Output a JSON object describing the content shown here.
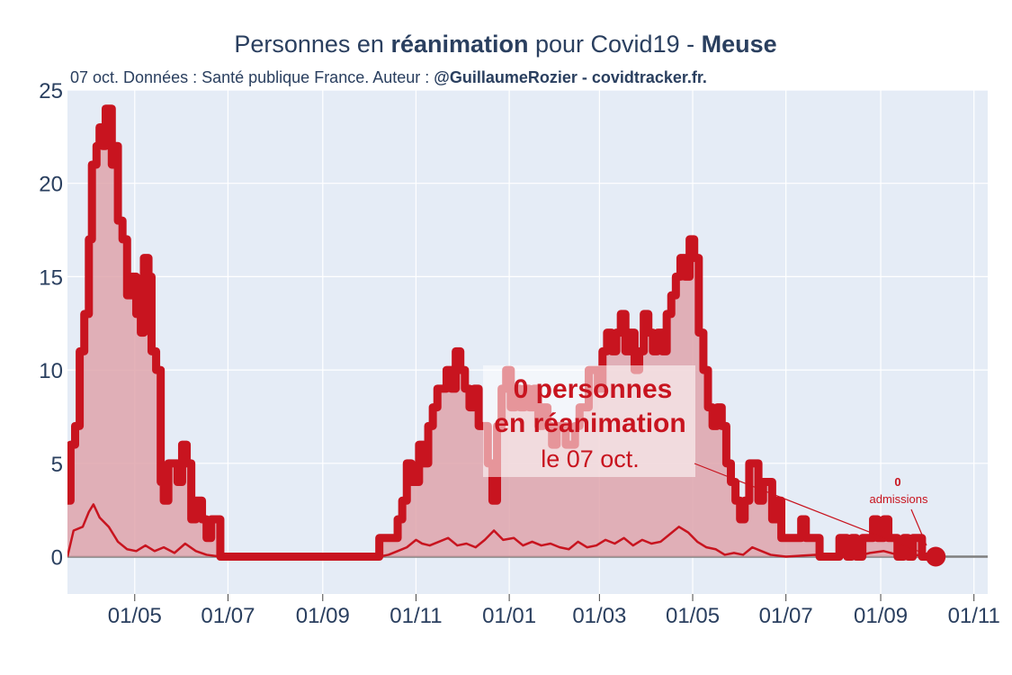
{
  "chart_data": {
    "type": "area",
    "title_parts": [
      {
        "text": "Personnes en ",
        "bold": false
      },
      {
        "text": "réanimation",
        "bold": true
      },
      {
        "text": " pour Covid19 - ",
        "bold": false
      },
      {
        "text": "Meuse",
        "bold": true
      }
    ],
    "subtitle_parts": [
      {
        "text": "07 oct. Données : Santé publique France. Auteur : ",
        "bold": false
      },
      {
        "text": "@GuillaumeRozier - covidtracker.fr.",
        "bold": true
      }
    ],
    "x_range": [
      "2020-03-18",
      "2021-11-10"
    ],
    "ylim": [
      -2,
      25
    ],
    "yticks": [
      0,
      5,
      10,
      15,
      20,
      25
    ],
    "xticks": [
      {
        "date": "2020-05-01",
        "label": "01/05"
      },
      {
        "date": "2020-07-01",
        "label": "01/07"
      },
      {
        "date": "2020-09-01",
        "label": "01/09"
      },
      {
        "date": "2020-11-01",
        "label": "01/11"
      },
      {
        "date": "2021-01-01",
        "label": "01/01"
      },
      {
        "date": "2021-03-01",
        "label": "01/03"
      },
      {
        "date": "2021-05-01",
        "label": "01/05"
      },
      {
        "date": "2021-07-01",
        "label": "01/07"
      },
      {
        "date": "2021-09-01",
        "label": "01/09"
      },
      {
        "date": "2021-11-01",
        "label": "01/11"
      }
    ],
    "grid": true,
    "series": [
      {
        "role": "icu_patients",
        "color": "#c8141f",
        "fill": "#dfa5ab",
        "points": [
          [
            "2020-03-18",
            3
          ],
          [
            "2020-03-20",
            6
          ],
          [
            "2020-03-23",
            7
          ],
          [
            "2020-03-26",
            11
          ],
          [
            "2020-03-29",
            13
          ],
          [
            "2020-04-01",
            17
          ],
          [
            "2020-04-03",
            21
          ],
          [
            "2020-04-06",
            22
          ],
          [
            "2020-04-08",
            23
          ],
          [
            "2020-04-10",
            22
          ],
          [
            "2020-04-12",
            24
          ],
          [
            "2020-04-14",
            24
          ],
          [
            "2020-04-16",
            21
          ],
          [
            "2020-04-18",
            22
          ],
          [
            "2020-04-20",
            18
          ],
          [
            "2020-04-23",
            17
          ],
          [
            "2020-04-26",
            14
          ],
          [
            "2020-04-29",
            15
          ],
          [
            "2020-05-02",
            13
          ],
          [
            "2020-05-05",
            12
          ],
          [
            "2020-05-07",
            16
          ],
          [
            "2020-05-10",
            15
          ],
          [
            "2020-05-12",
            11
          ],
          [
            "2020-05-15",
            10
          ],
          [
            "2020-05-18",
            4
          ],
          [
            "2020-05-20",
            3
          ],
          [
            "2020-05-23",
            5
          ],
          [
            "2020-05-26",
            5
          ],
          [
            "2020-05-29",
            4
          ],
          [
            "2020-06-01",
            6
          ],
          [
            "2020-06-04",
            5
          ],
          [
            "2020-06-07",
            2
          ],
          [
            "2020-06-10",
            3
          ],
          [
            "2020-06-14",
            2
          ],
          [
            "2020-06-17",
            1
          ],
          [
            "2020-06-20",
            2
          ],
          [
            "2020-06-24",
            2
          ],
          [
            "2020-06-26",
            0
          ],
          [
            "2020-10-05",
            0
          ],
          [
            "2020-10-08",
            1
          ],
          [
            "2020-10-16",
            1
          ],
          [
            "2020-10-20",
            2
          ],
          [
            "2020-10-23",
            3
          ],
          [
            "2020-10-26",
            5
          ],
          [
            "2020-10-29",
            4
          ],
          [
            "2020-11-01",
            4
          ],
          [
            "2020-11-03",
            6
          ],
          [
            "2020-11-06",
            5
          ],
          [
            "2020-11-09",
            7
          ],
          [
            "2020-11-12",
            8
          ],
          [
            "2020-11-15",
            9
          ],
          [
            "2020-11-18",
            9
          ],
          [
            "2020-11-21",
            10
          ],
          [
            "2020-11-24",
            9
          ],
          [
            "2020-11-27",
            11
          ],
          [
            "2020-11-30",
            10
          ],
          [
            "2020-12-03",
            9
          ],
          [
            "2020-12-06",
            8
          ],
          [
            "2020-12-09",
            9
          ],
          [
            "2020-12-12",
            7
          ],
          [
            "2020-12-15",
            7
          ],
          [
            "2020-12-18",
            5
          ],
          [
            "2020-12-21",
            3
          ],
          [
            "2020-12-24",
            7
          ],
          [
            "2020-12-27",
            9
          ],
          [
            "2020-12-30",
            10
          ],
          [
            "2021-01-02",
            8
          ],
          [
            "2021-01-05",
            9
          ],
          [
            "2021-01-08",
            8
          ],
          [
            "2021-01-11",
            9
          ],
          [
            "2021-01-14",
            8
          ],
          [
            "2021-01-17",
            9
          ],
          [
            "2021-01-20",
            7
          ],
          [
            "2021-01-23",
            8
          ],
          [
            "2021-01-26",
            7
          ],
          [
            "2021-01-29",
            6
          ],
          [
            "2021-02-01",
            7
          ],
          [
            "2021-02-04",
            7
          ],
          [
            "2021-02-07",
            6
          ],
          [
            "2021-02-10",
            6
          ],
          [
            "2021-02-13",
            7
          ],
          [
            "2021-02-16",
            8
          ],
          [
            "2021-02-19",
            8
          ],
          [
            "2021-02-22",
            10
          ],
          [
            "2021-02-25",
            10
          ],
          [
            "2021-02-28",
            9
          ],
          [
            "2021-03-03",
            11
          ],
          [
            "2021-03-06",
            12
          ],
          [
            "2021-03-09",
            11
          ],
          [
            "2021-03-12",
            12
          ],
          [
            "2021-03-15",
            13
          ],
          [
            "2021-03-18",
            11
          ],
          [
            "2021-03-21",
            12
          ],
          [
            "2021-03-24",
            10
          ],
          [
            "2021-03-27",
            11
          ],
          [
            "2021-03-30",
            13
          ],
          [
            "2021-04-02",
            12
          ],
          [
            "2021-04-05",
            11
          ],
          [
            "2021-04-08",
            12
          ],
          [
            "2021-04-11",
            11
          ],
          [
            "2021-04-14",
            13
          ],
          [
            "2021-04-17",
            14
          ],
          [
            "2021-04-20",
            15
          ],
          [
            "2021-04-23",
            16
          ],
          [
            "2021-04-26",
            15
          ],
          [
            "2021-04-29",
            17
          ],
          [
            "2021-05-02",
            16
          ],
          [
            "2021-05-05",
            12
          ],
          [
            "2021-05-08",
            10
          ],
          [
            "2021-05-11",
            8
          ],
          [
            "2021-05-14",
            7
          ],
          [
            "2021-05-17",
            8
          ],
          [
            "2021-05-20",
            7
          ],
          [
            "2021-05-23",
            5
          ],
          [
            "2021-05-26",
            4
          ],
          [
            "2021-05-29",
            3
          ],
          [
            "2021-06-01",
            2
          ],
          [
            "2021-06-04",
            3
          ],
          [
            "2021-06-07",
            5
          ],
          [
            "2021-06-10",
            5
          ],
          [
            "2021-06-13",
            3
          ],
          [
            "2021-06-16",
            4
          ],
          [
            "2021-06-19",
            4
          ],
          [
            "2021-06-22",
            2
          ],
          [
            "2021-06-25",
            3
          ],
          [
            "2021-06-28",
            1
          ],
          [
            "2021-07-05",
            1
          ],
          [
            "2021-07-08",
            1
          ],
          [
            "2021-07-11",
            2
          ],
          [
            "2021-07-14",
            1
          ],
          [
            "2021-07-20",
            1
          ],
          [
            "2021-07-23",
            0
          ],
          [
            "2021-08-02",
            0
          ],
          [
            "2021-08-05",
            1
          ],
          [
            "2021-08-10",
            0
          ],
          [
            "2021-08-13",
            1
          ],
          [
            "2021-08-16",
            0
          ],
          [
            "2021-08-20",
            1
          ],
          [
            "2021-08-24",
            1
          ],
          [
            "2021-08-27",
            2
          ],
          [
            "2021-08-30",
            1
          ],
          [
            "2021-09-03",
            2
          ],
          [
            "2021-09-06",
            1
          ],
          [
            "2021-09-09",
            1
          ],
          [
            "2021-09-12",
            0
          ],
          [
            "2021-09-16",
            1
          ],
          [
            "2021-09-19",
            0
          ],
          [
            "2021-09-22",
            1
          ],
          [
            "2021-09-25",
            1
          ],
          [
            "2021-09-28",
            0
          ],
          [
            "2021-10-01",
            0
          ],
          [
            "2021-10-07",
            0
          ]
        ],
        "last_value": 0
      },
      {
        "role": "daily_admissions_avg",
        "color": "#c8141f",
        "points": [
          [
            "2020-03-18",
            0
          ],
          [
            "2020-03-22",
            1.4
          ],
          [
            "2020-03-28",
            1.6
          ],
          [
            "2020-04-01",
            2.4
          ],
          [
            "2020-04-04",
            2.8
          ],
          [
            "2020-04-08",
            2.1
          ],
          [
            "2020-04-14",
            1.6
          ],
          [
            "2020-04-20",
            0.8
          ],
          [
            "2020-04-26",
            0.4
          ],
          [
            "2020-05-02",
            0.3
          ],
          [
            "2020-05-08",
            0.6
          ],
          [
            "2020-05-14",
            0.3
          ],
          [
            "2020-05-20",
            0.5
          ],
          [
            "2020-05-27",
            0.2
          ],
          [
            "2020-06-03",
            0.7
          ],
          [
            "2020-06-10",
            0.3
          ],
          [
            "2020-06-17",
            0.1
          ],
          [
            "2020-06-26",
            0
          ],
          [
            "2020-10-08",
            0
          ],
          [
            "2020-10-14",
            0.1
          ],
          [
            "2020-10-20",
            0.3
          ],
          [
            "2020-10-26",
            0.5
          ],
          [
            "2020-11-01",
            0.9
          ],
          [
            "2020-11-05",
            0.7
          ],
          [
            "2020-11-10",
            0.6
          ],
          [
            "2020-11-16",
            0.8
          ],
          [
            "2020-11-22",
            1.0
          ],
          [
            "2020-11-28",
            0.6
          ],
          [
            "2020-12-04",
            0.7
          ],
          [
            "2020-12-10",
            0.5
          ],
          [
            "2020-12-16",
            0.9
          ],
          [
            "2020-12-22",
            1.4
          ],
          [
            "2020-12-28",
            0.9
          ],
          [
            "2021-01-04",
            1.0
          ],
          [
            "2021-01-10",
            0.6
          ],
          [
            "2021-01-16",
            0.8
          ],
          [
            "2021-01-22",
            0.6
          ],
          [
            "2021-01-28",
            0.7
          ],
          [
            "2021-02-03",
            0.5
          ],
          [
            "2021-02-09",
            0.4
          ],
          [
            "2021-02-15",
            0.8
          ],
          [
            "2021-02-21",
            0.5
          ],
          [
            "2021-02-27",
            0.6
          ],
          [
            "2021-03-05",
            0.9
          ],
          [
            "2021-03-11",
            0.7
          ],
          [
            "2021-03-17",
            1.0
          ],
          [
            "2021-03-23",
            0.6
          ],
          [
            "2021-03-29",
            0.9
          ],
          [
            "2021-04-04",
            0.7
          ],
          [
            "2021-04-10",
            0.8
          ],
          [
            "2021-04-16",
            1.2
          ],
          [
            "2021-04-22",
            1.6
          ],
          [
            "2021-04-28",
            1.3
          ],
          [
            "2021-05-04",
            0.8
          ],
          [
            "2021-05-10",
            0.5
          ],
          [
            "2021-05-16",
            0.4
          ],
          [
            "2021-05-22",
            0.1
          ],
          [
            "2021-05-28",
            0.2
          ],
          [
            "2021-06-03",
            0.1
          ],
          [
            "2021-06-09",
            0.5
          ],
          [
            "2021-06-15",
            0.3
          ],
          [
            "2021-06-21",
            0.1
          ],
          [
            "2021-07-01",
            0
          ],
          [
            "2021-07-20",
            0.1
          ],
          [
            "2021-08-01",
            0
          ],
          [
            "2021-08-15",
            0
          ],
          [
            "2021-08-25",
            0.2
          ],
          [
            "2021-09-03",
            0.3
          ],
          [
            "2021-09-12",
            0.1
          ],
          [
            "2021-09-22",
            0.1
          ],
          [
            "2021-10-07",
            0
          ]
        ]
      }
    ],
    "annotation_main": {
      "value_line": "0 personnes",
      "label_line": "en réanimation",
      "date_line": "le 07 oct."
    },
    "annotation_small": {
      "value": "0",
      "label": "admissions"
    },
    "colors": {
      "plot_bg": "#e5ecf6",
      "grid": "#ffffff",
      "zero_line": "#7f7f7f",
      "accent": "#c8141f",
      "fill": "#dfa5ab"
    }
  }
}
